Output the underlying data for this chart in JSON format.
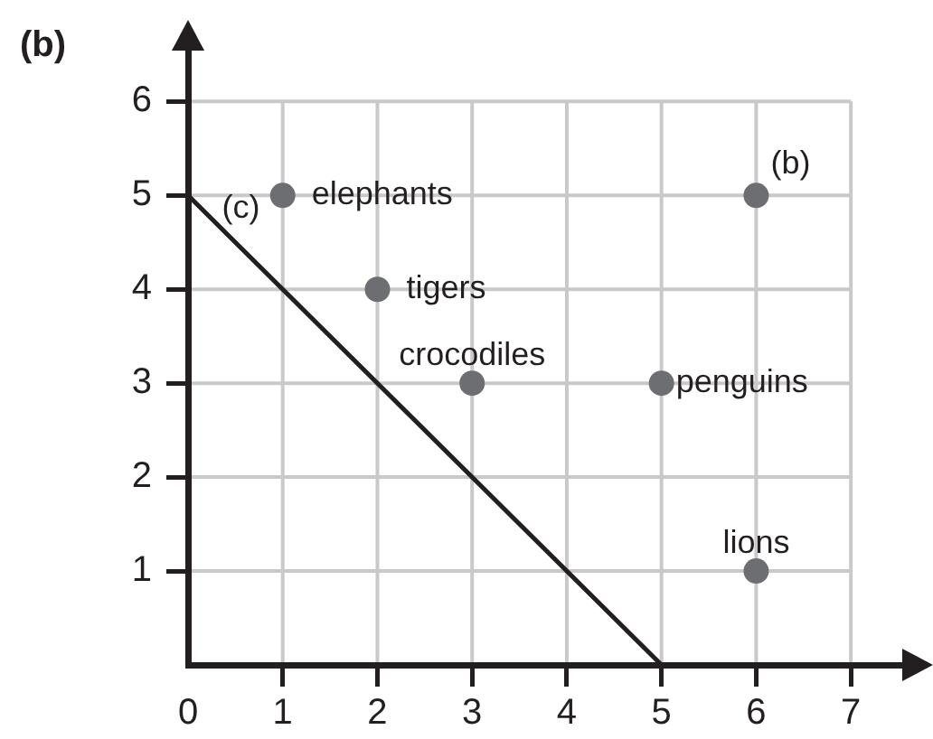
{
  "chart_data": {
    "type": "scatter",
    "title": "(b)",
    "series": [
      {
        "color": "#6d6e71",
        "x": [
          1,
          2,
          3,
          5,
          6,
          6
        ],
        "values": [
          5,
          4,
          3,
          3,
          1,
          5
        ]
      },
      {
        "type": "line",
        "color": "#231f20",
        "x": [
          0,
          5
        ],
        "values": [
          5,
          0
        ],
        "marker": "none"
      }
    ],
    "marker": "circle",
    "xlim": [
      0,
      7.6
    ],
    "ylim": [
      0,
      6.6
    ],
    "xticks": [
      0,
      1,
      2,
      3,
      4,
      5,
      6,
      7
    ],
    "yticks": [
      1,
      2,
      3,
      4,
      5,
      6
    ],
    "grid": true,
    "annotations": [
      {
        "text": "elephants",
        "x": 1,
        "y": 5
      },
      {
        "text": "tigers",
        "x": 2,
        "y": 4
      },
      {
        "text": "crocodiles",
        "x": 3,
        "y": 3
      },
      {
        "text": "penguins",
        "x": 5,
        "y": 3
      },
      {
        "text": "lions",
        "x": 6,
        "y": 1
      },
      {
        "text": "(b)",
        "x": 6,
        "y": 5
      },
      {
        "text": "(c)",
        "x": 0.3,
        "y": 4.7
      }
    ]
  }
}
